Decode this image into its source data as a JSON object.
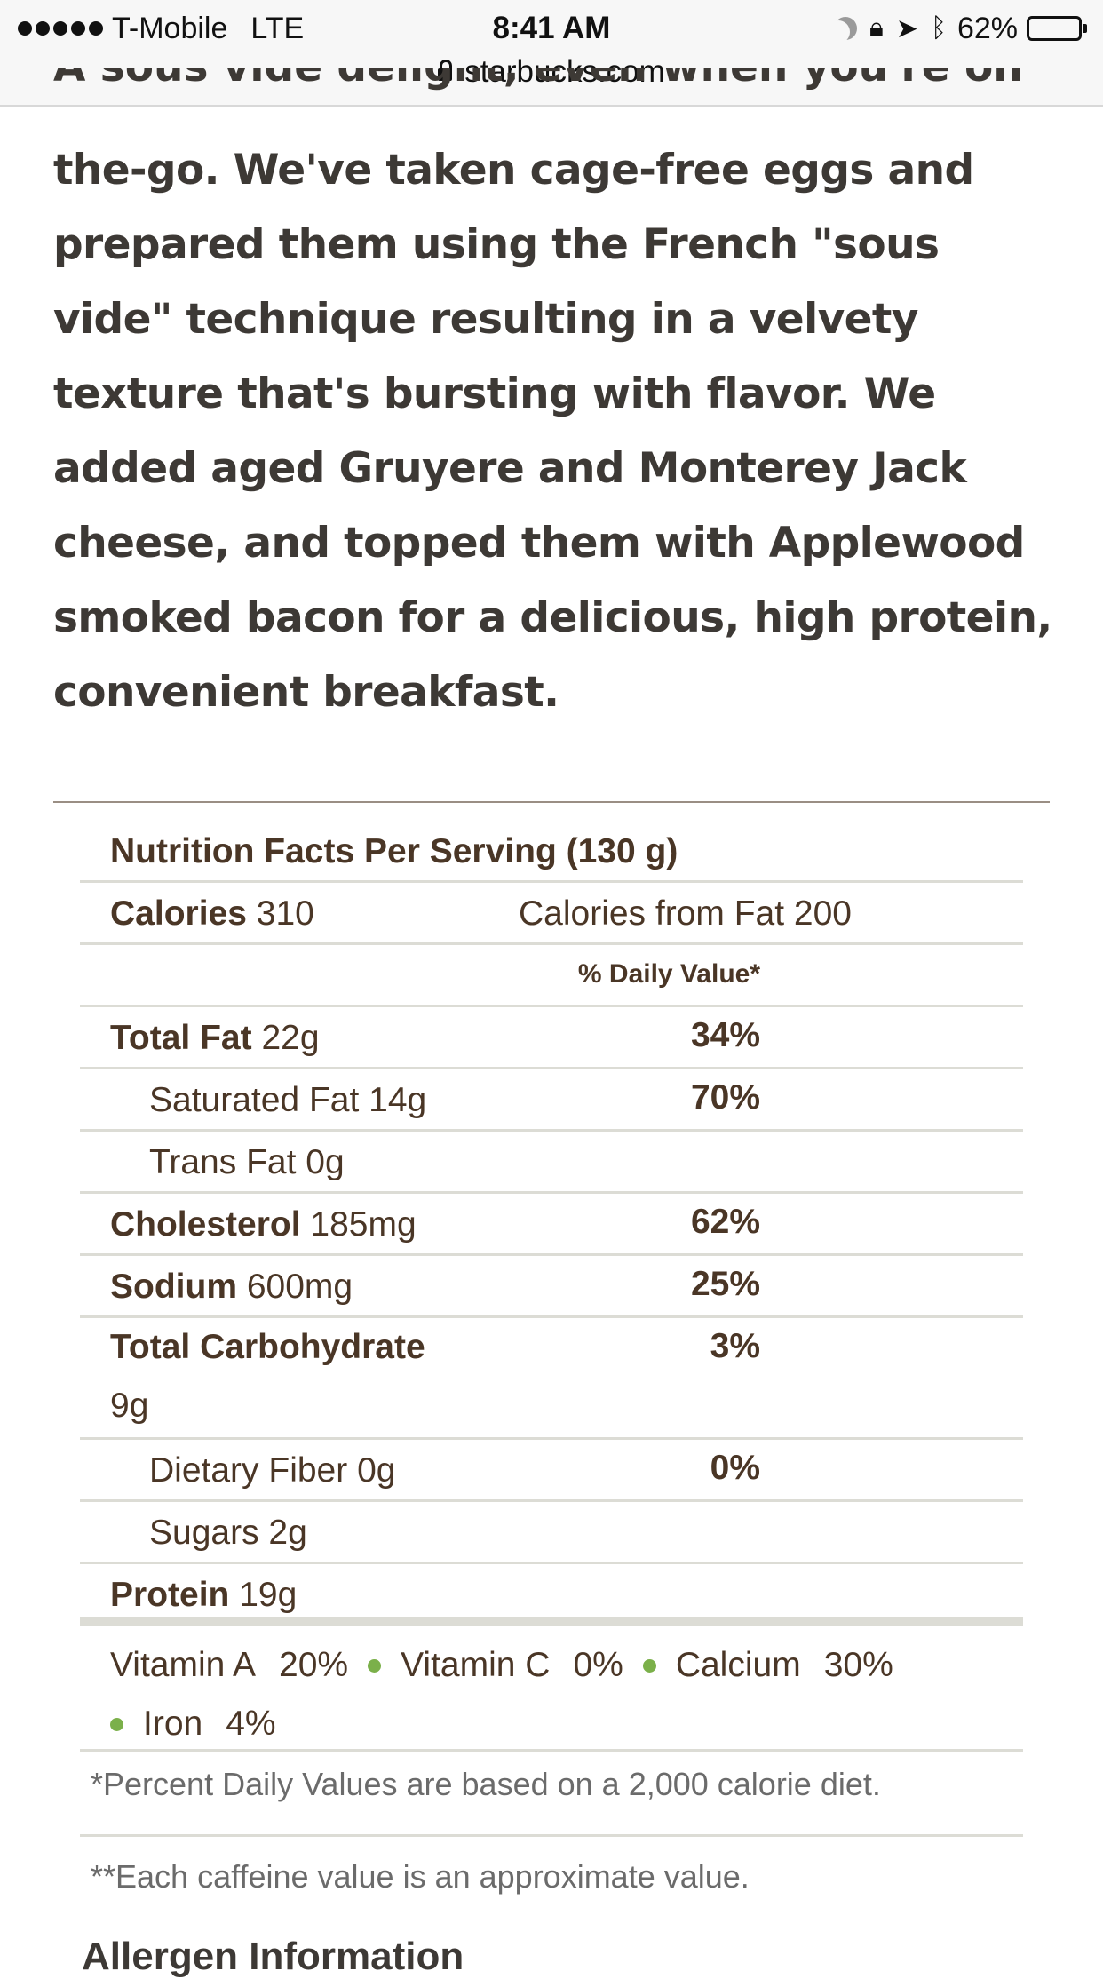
{
  "status_bar": {
    "carrier": "T-Mobile",
    "network": "LTE",
    "time": "8:41 AM",
    "battery": "62%",
    "battery_level": 0.62,
    "url": "starbucks.com"
  },
  "description": {
    "cutoff_line": "A sous vide delight, even when you're on",
    "text": "the-go. We've taken cage-free eggs and prepared them using the French \"sous vide\" technique resulting in a velvety texture that's bursting with flavor. We added aged Gruyere and Monterey Jack cheese, and topped them with Applewood smoked bacon for a delicious, high protein, convenient breakfast."
  },
  "nutrition": {
    "header": "Nutrition Facts Per Serving (130 g)",
    "calories_label": "Calories",
    "calories_value": "310",
    "calories_from_fat": "Calories from Fat 200",
    "daily_value_header": "% Daily Value*",
    "rows": [
      {
        "label": "Total Fat",
        "amount": "22g",
        "dv": "34%"
      },
      {
        "label": "Saturated Fat",
        "amount": "14g",
        "dv": "70%"
      },
      {
        "label": "Trans Fat",
        "amount": "0g",
        "dv": ""
      },
      {
        "label": "Cholesterol",
        "amount": "185mg",
        "dv": "62%"
      },
      {
        "label": "Sodium",
        "amount": "600mg",
        "dv": "25%"
      },
      {
        "label": "Total Carbohydrate",
        "amount": "9g",
        "dv": "3%"
      },
      {
        "label": "Dietary Fiber",
        "amount": "0g",
        "dv": "0%"
      },
      {
        "label": "Sugars",
        "amount": "2g",
        "dv": ""
      },
      {
        "label": "Protein",
        "amount": "19g",
        "dv": ""
      }
    ],
    "vitamins": [
      {
        "name": "Vitamin A",
        "value": "20%"
      },
      {
        "name": "Vitamin C",
        "value": "0%"
      },
      {
        "name": "Calcium",
        "value": "30%"
      },
      {
        "name": "Iron",
        "value": "4%"
      }
    ],
    "footnote_1": "*Percent Daily Values are based on a 2,000 calorie diet.",
    "footnote_2": "**Each caffeine value is an approximate value."
  },
  "allergen_heading": "Allergen Information"
}
